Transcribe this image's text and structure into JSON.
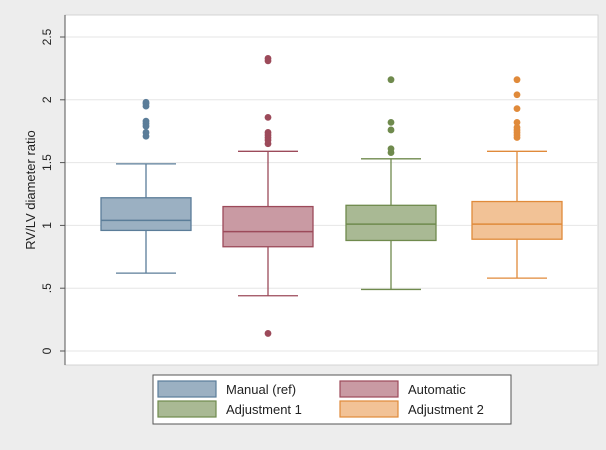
{
  "chart_data": {
    "type": "box",
    "ylabel": "RV/LV diameter ratio",
    "ylim": [
      0,
      2.5
    ],
    "y_ticks": [
      {
        "value": 0,
        "label": "0"
      },
      {
        "value": 0.5,
        "label": ".5"
      },
      {
        "value": 1,
        "label": "1"
      },
      {
        "value": 1.5,
        "label": "1.5"
      },
      {
        "value": 2,
        "label": "2"
      },
      {
        "value": 2.5,
        "label": "2.5"
      }
    ],
    "grid": true,
    "legend_position": "bottom",
    "series": [
      {
        "name": "Manual (ref)",
        "color": "#5b7d99",
        "fill": "#9bb0c2",
        "whisker_low": 0.62,
        "q1": 0.96,
        "median": 1.04,
        "q3": 1.22,
        "whisker_high": 1.49,
        "outliers": [
          1.71,
          1.74,
          1.79,
          1.81,
          1.83,
          1.95,
          1.97,
          1.98
        ]
      },
      {
        "name": "Automatic",
        "color": "#9c4a5a",
        "fill": "#c99aa3",
        "whisker_low": 0.44,
        "q1": 0.83,
        "median": 0.95,
        "q3": 1.15,
        "whisker_high": 1.59,
        "outliers": [
          0.14,
          1.65,
          1.68,
          1.7,
          1.72,
          1.74,
          1.86,
          2.31,
          2.33
        ]
      },
      {
        "name": "Adjustment 1",
        "color": "#6f8a4d",
        "fill": "#a9b994",
        "whisker_low": 0.49,
        "q1": 0.88,
        "median": 1.01,
        "q3": 1.16,
        "whisker_high": 1.53,
        "outliers": [
          1.58,
          1.61,
          1.76,
          1.82,
          2.16
        ]
      },
      {
        "name": "Adjustment 2",
        "color": "#e08a3a",
        "fill": "#f2c296",
        "whisker_low": 0.58,
        "q1": 0.89,
        "median": 1.01,
        "q3": 1.19,
        "whisker_high": 1.59,
        "outliers": [
          1.7,
          1.72,
          1.74,
          1.76,
          1.78,
          1.82,
          1.93,
          2.04,
          2.16
        ]
      }
    ]
  }
}
